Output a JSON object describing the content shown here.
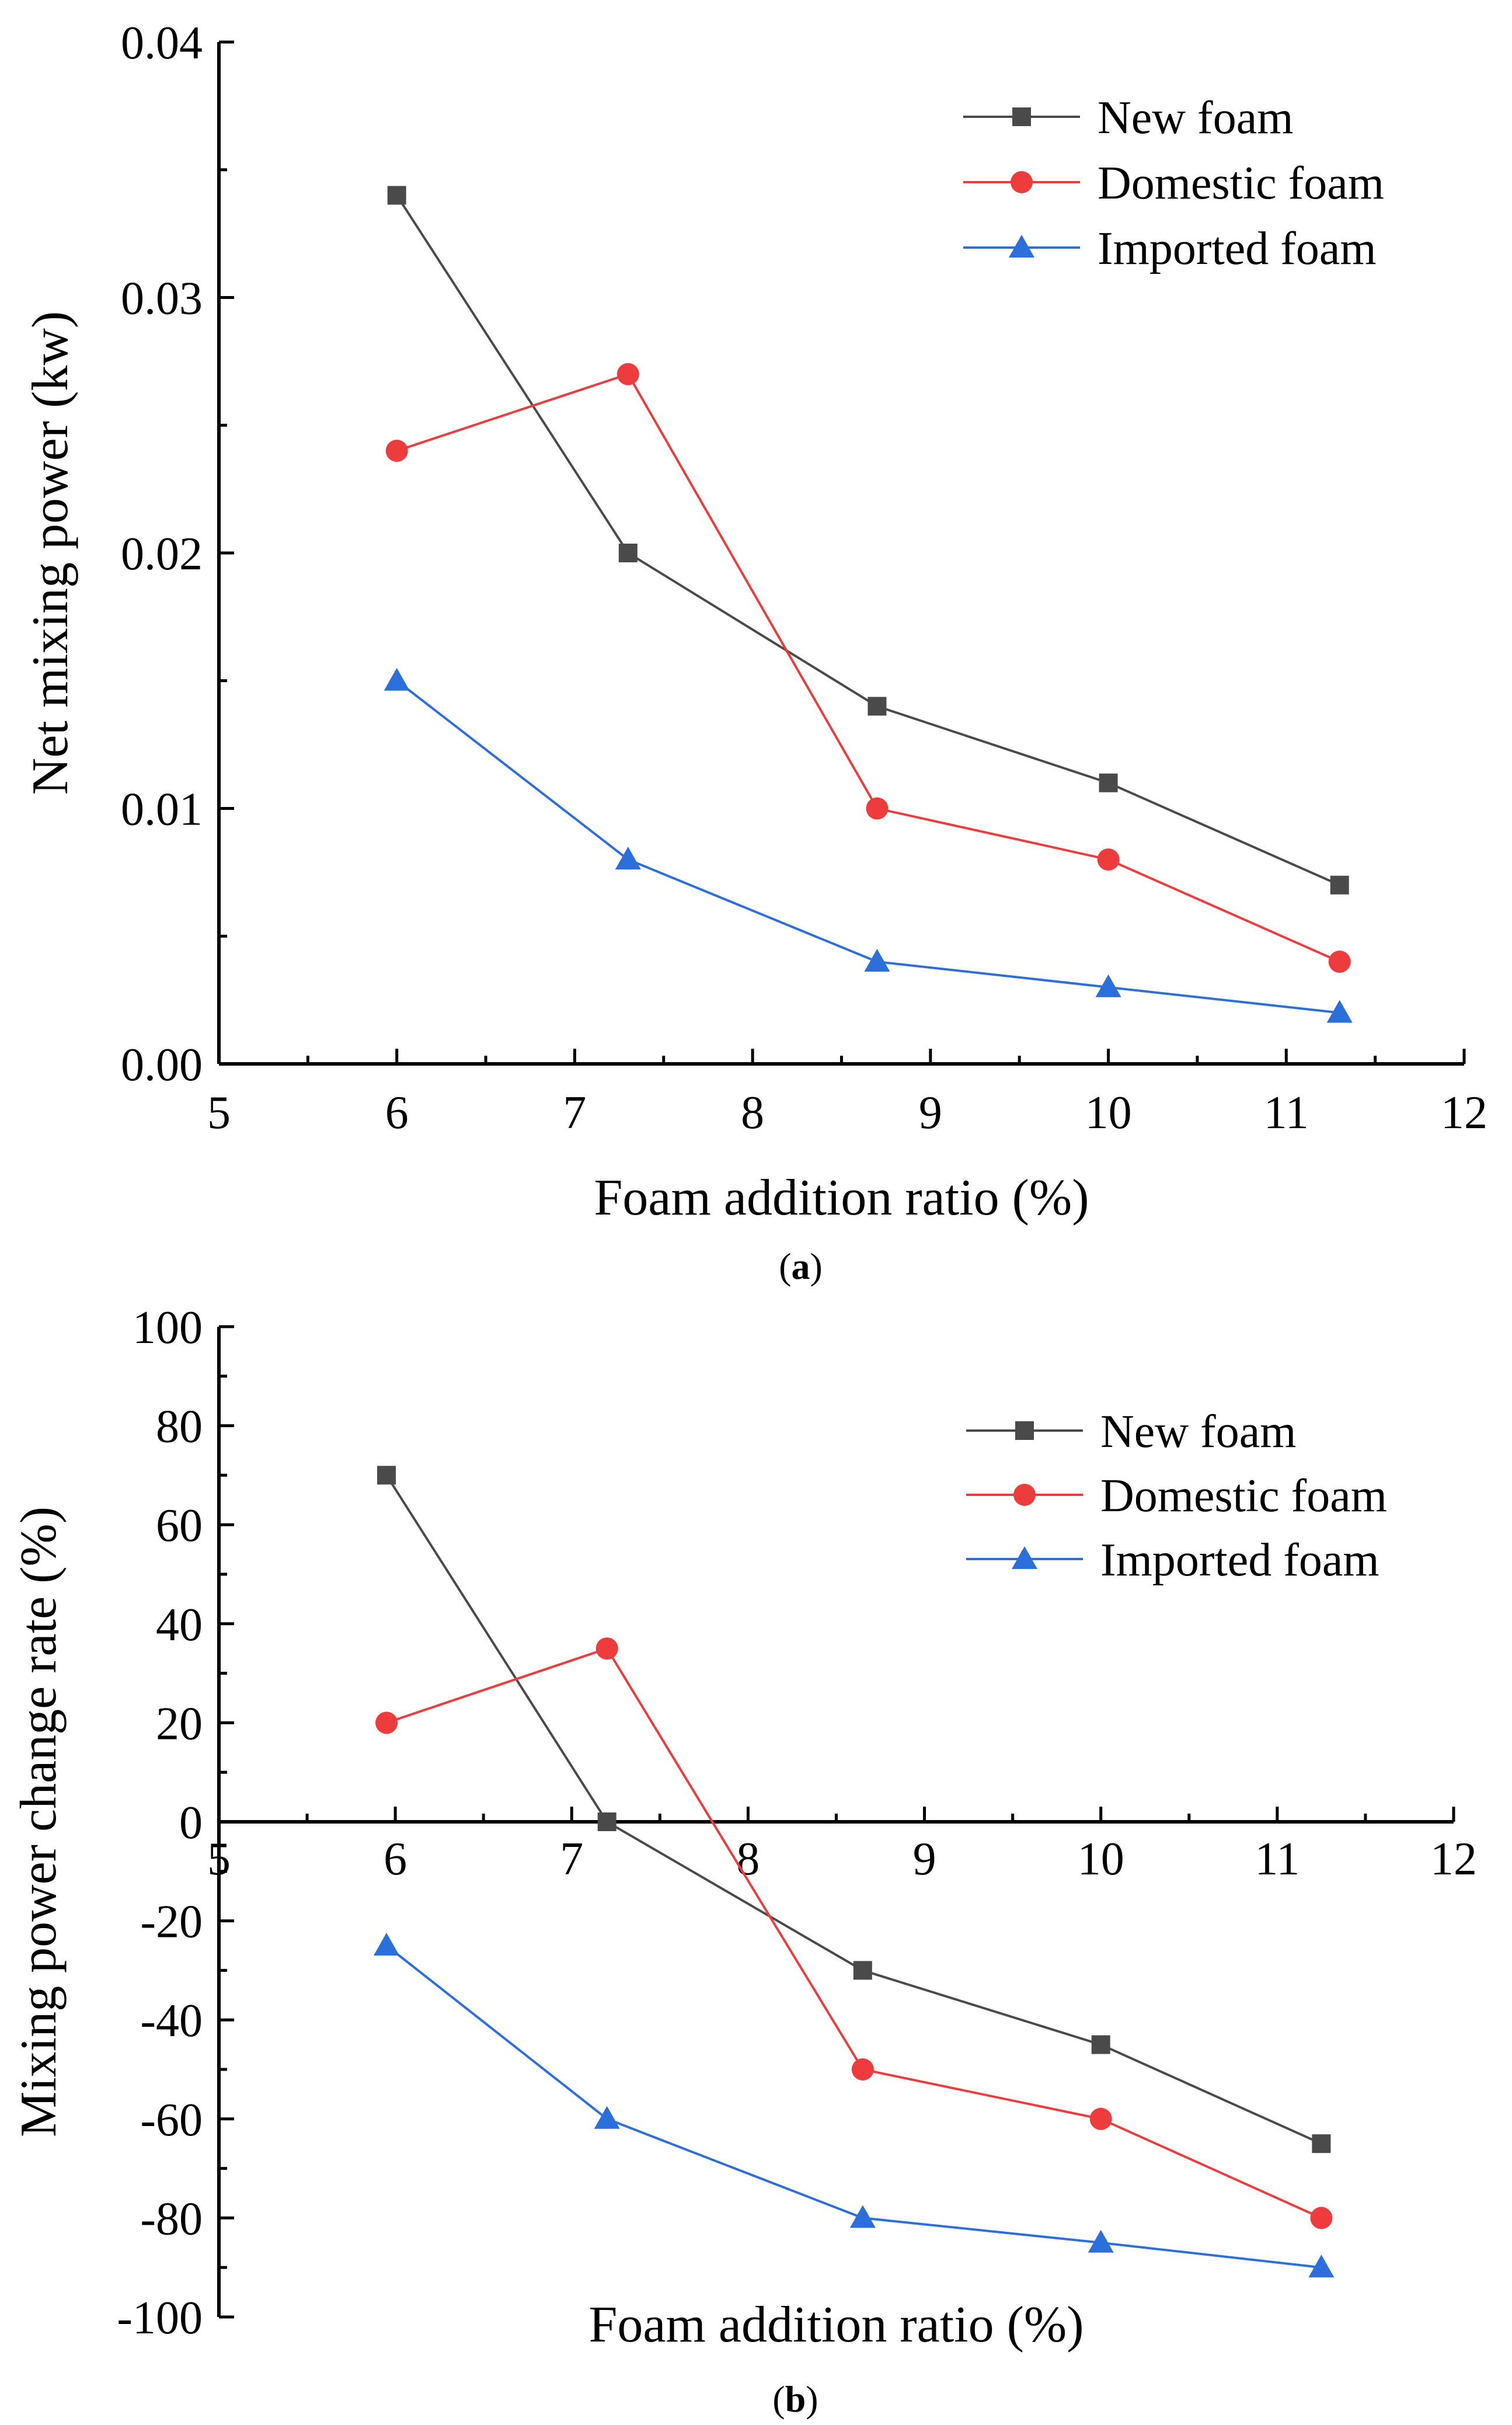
{
  "chart_data": [
    {
      "type": "line",
      "panel_label": "a",
      "xlabel": "Foam addition ratio (%)",
      "ylabel": "Net mixing power (kw)",
      "xlim": [
        5,
        12
      ],
      "ylim": [
        0,
        0.04
      ],
      "x_ticks": [
        "5",
        "6",
        "7",
        "8",
        "9",
        "10",
        "11",
        "12"
      ],
      "y_ticks": [
        "0.00",
        "0.01",
        "0.02",
        "0.03",
        "0.04"
      ],
      "legend_position": "top-right",
      "grid": false,
      "series": [
        {
          "name": "New foam",
          "marker": "square",
          "color": "#4a4a4a",
          "x": [
            6,
            7.3,
            8.7,
            10,
            11.3
          ],
          "y": [
            0.034,
            0.02,
            0.014,
            0.011,
            0.007
          ]
        },
        {
          "name": "Domestic foam",
          "marker": "circle",
          "color": "#ee3b3b",
          "x": [
            6,
            7.3,
            8.7,
            10,
            11.3
          ],
          "y": [
            0.024,
            0.027,
            0.01,
            0.008,
            0.004
          ]
        },
        {
          "name": "Imported foam",
          "marker": "triangle",
          "color": "#2a6fdb",
          "x": [
            6,
            7.3,
            8.7,
            10,
            11.3
          ],
          "y": [
            0.015,
            0.008,
            0.004,
            0.003,
            0.002
          ]
        }
      ]
    },
    {
      "type": "line",
      "panel_label": "b",
      "xlabel": "Foam addition ratio (%)",
      "ylabel": "Mixing power change rate (%)",
      "xlim": [
        5,
        12
      ],
      "ylim": [
        -100,
        100
      ],
      "x_ticks": [
        "5",
        "6",
        "7",
        "8",
        "9",
        "10",
        "11",
        "12"
      ],
      "y_ticks": [
        "-100",
        "-80",
        "-60",
        "-40",
        "-20",
        "0",
        "20",
        "40",
        "60",
        "80",
        "100"
      ],
      "legend_position": "top-right",
      "grid": false,
      "series": [
        {
          "name": "New foam",
          "marker": "square",
          "color": "#4a4a4a",
          "x": [
            5.95,
            7.2,
            8.65,
            10,
            11.25
          ],
          "y": [
            70,
            0,
            -30,
            -45,
            -65
          ]
        },
        {
          "name": "Domestic foam",
          "marker": "circle",
          "color": "#ee3b3b",
          "x": [
            5.95,
            7.2,
            8.65,
            10,
            11.25
          ],
          "y": [
            20,
            35,
            -50,
            -60,
            -80
          ]
        },
        {
          "name": "Imported foam",
          "marker": "triangle",
          "color": "#2a6fdb",
          "x": [
            5.95,
            7.2,
            8.65,
            10,
            11.25
          ],
          "y": [
            -25,
            -60,
            -80,
            -85,
            -90
          ]
        }
      ]
    }
  ]
}
